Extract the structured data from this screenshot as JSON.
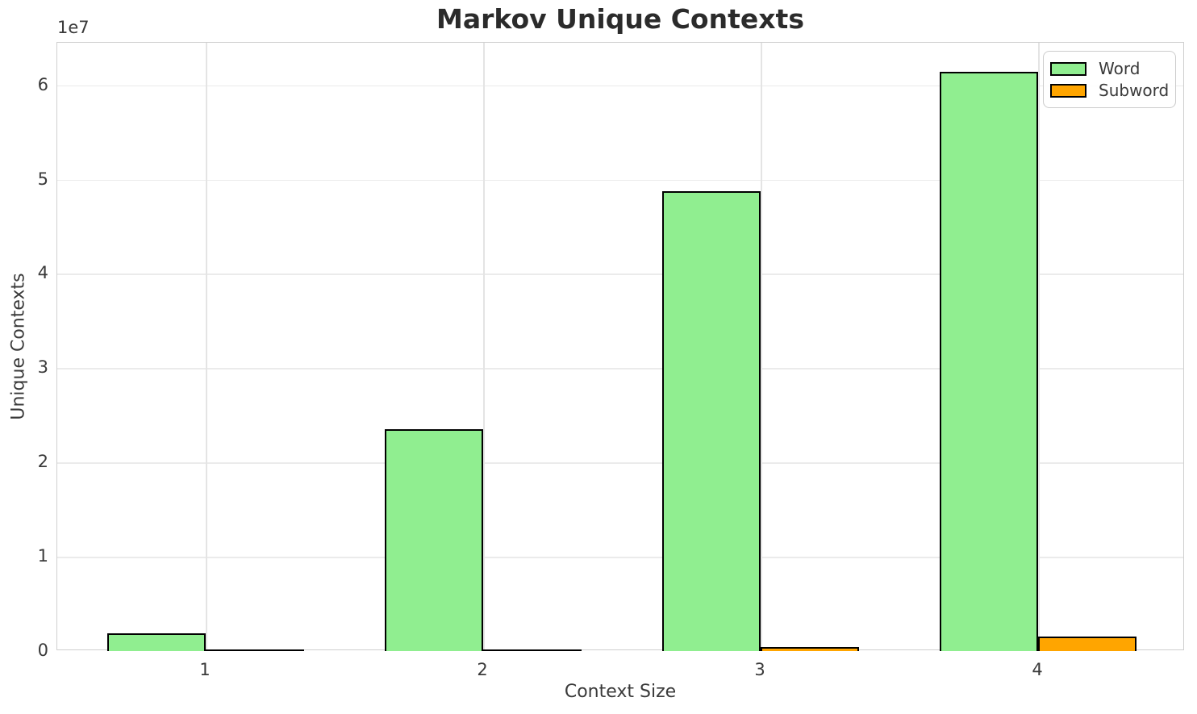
{
  "chart_data": {
    "type": "bar",
    "title": "Markov Unique Contexts",
    "xlabel": "Context Size",
    "ylabel": "Unique Contexts",
    "offset_text": "1e7",
    "categories": [
      "1",
      "2",
      "3",
      "4"
    ],
    "series": [
      {
        "name": "Word",
        "color": "#90EE90",
        "values": [
          1900000,
          23500000,
          48800000,
          61400000
        ]
      },
      {
        "name": "Subword",
        "color": "#FFA500",
        "values": [
          30000,
          150000,
          400000,
          1550000
        ]
      }
    ],
    "bar_edge_color": "#000000",
    "ylim": [
      0,
      64500000
    ],
    "yticks": [
      0,
      1,
      2,
      3,
      4,
      5,
      6
    ],
    "ytick_scale": 10000000,
    "grid": true,
    "legend_position": "upper right"
  },
  "colors": {
    "background": "#ffffff",
    "grid": "#ebebeb",
    "spine": "#cfcfcf",
    "text": "#3a3a3a",
    "title": "#2b2b2b"
  }
}
